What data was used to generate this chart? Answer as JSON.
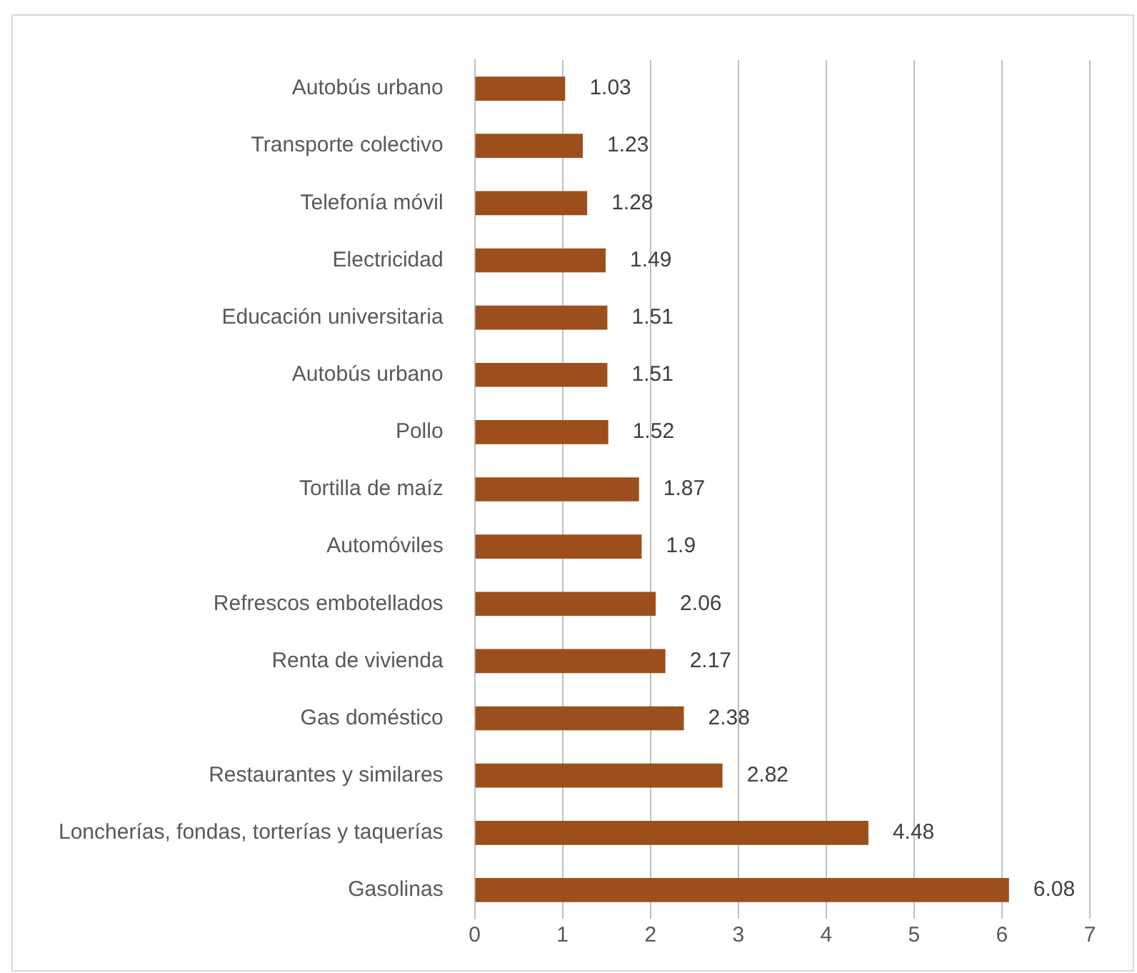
{
  "chart_data": {
    "type": "bar",
    "orientation": "horizontal",
    "categories": [
      "Autobús urbano",
      "Transporte colectivo",
      "Telefonía móvil",
      "Electricidad",
      "Educación universitaria",
      "Autobús urbano",
      "Pollo",
      "Tortilla de maíz",
      "Automóviles",
      "Refrescos embotellados",
      "Renta de vivienda",
      "Gas doméstico",
      "Restaurantes y similares",
      "Loncherías, fondas, torterías y taquerías",
      "Gasolinas"
    ],
    "values": [
      1.03,
      1.23,
      1.28,
      1.49,
      1.51,
      1.51,
      1.52,
      1.87,
      1.9,
      2.06,
      2.17,
      2.38,
      2.82,
      4.48,
      6.08
    ],
    "color": "#9c4f1c",
    "xlim": [
      0,
      7
    ],
    "xticks": [
      0,
      1,
      2,
      3,
      4,
      5,
      6,
      7
    ],
    "grid": "x",
    "data_labels": true,
    "legend": false
  }
}
